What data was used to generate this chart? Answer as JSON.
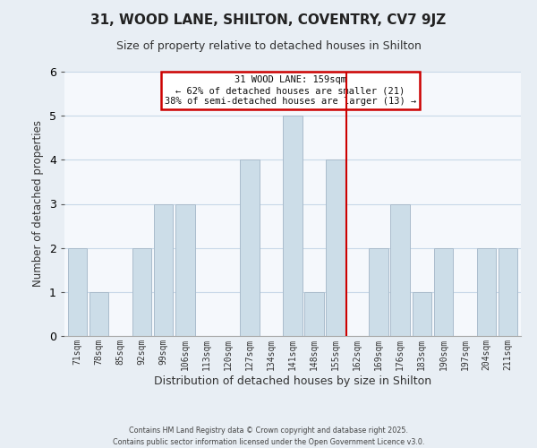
{
  "title": "31, WOOD LANE, SHILTON, COVENTRY, CV7 9JZ",
  "subtitle": "Size of property relative to detached houses in Shilton",
  "xlabel": "Distribution of detached houses by size in Shilton",
  "ylabel": "Number of detached properties",
  "bar_labels": [
    "71sqm",
    "78sqm",
    "85sqm",
    "92sqm",
    "99sqm",
    "106sqm",
    "113sqm",
    "120sqm",
    "127sqm",
    "134sqm",
    "141sqm",
    "148sqm",
    "155sqm",
    "162sqm",
    "169sqm",
    "176sqm",
    "183sqm",
    "190sqm",
    "197sqm",
    "204sqm",
    "211sqm"
  ],
  "bar_values": [
    2,
    1,
    0,
    2,
    3,
    3,
    0,
    0,
    4,
    0,
    5,
    1,
    4,
    0,
    2,
    3,
    1,
    2,
    0,
    2,
    2
  ],
  "bar_color": "#ccdde8",
  "bar_edge_color": "#aabccc",
  "ylim": [
    0,
    6
  ],
  "yticks": [
    0,
    1,
    2,
    3,
    4,
    5,
    6
  ],
  "vline_color": "#cc0000",
  "annotation_title": "31 WOOD LANE: 159sqm",
  "annotation_line1": "← 62% of detached houses are smaller (21)",
  "annotation_line2": "38% of semi-detached houses are larger (13) →",
  "annotation_box_color": "#ffffff",
  "annotation_border_color": "#cc0000",
  "footer1": "Contains HM Land Registry data © Crown copyright and database right 2025.",
  "footer2": "Contains public sector information licensed under the Open Government Licence v3.0.",
  "background_color": "#e8eef4",
  "plot_background_color": "#f5f8fc",
  "grid_color": "#c8d8e8"
}
